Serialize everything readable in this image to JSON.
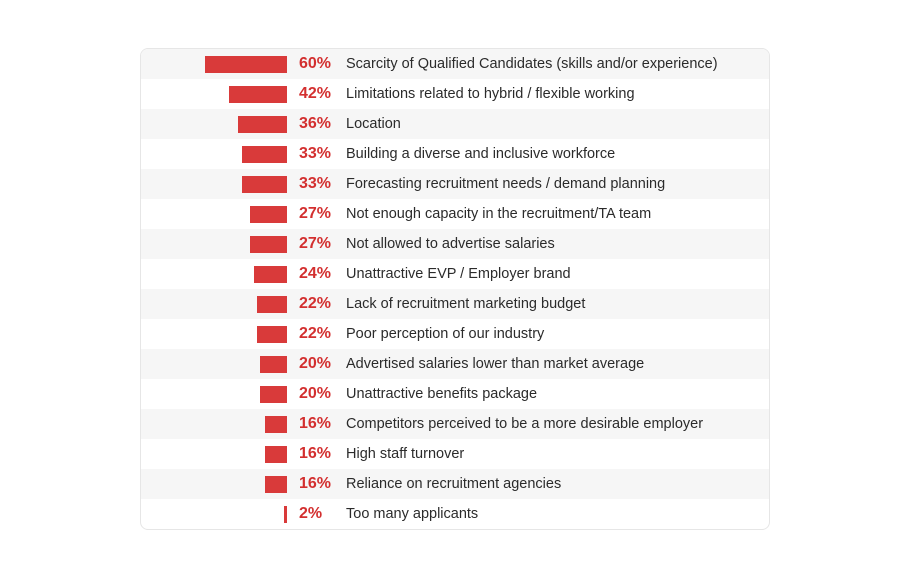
{
  "chart_data": {
    "type": "bar",
    "orientation": "horizontal",
    "unit": "%",
    "xlim": [
      0,
      100
    ],
    "colors": {
      "bar": "#d93a3a",
      "value_text": "#d32f2f",
      "row_stripe": "#f6f6f6"
    },
    "categories": [
      "Scarcity of Qualified Candidates (skills and/or experience)",
      "Limitations related to hybrid / flexible working",
      "Location",
      "Building a diverse and inclusive workforce",
      "Forecasting recruitment needs / demand planning",
      "Not enough capacity in the recruitment/TA team",
      "Not allowed to advertise salaries",
      "Unattractive EVP / Employer brand",
      "Lack of recruitment marketing budget",
      "Poor perception of our industry",
      "Advertised salaries lower than market average",
      "Unattractive benefits package",
      "Competitors perceived to be a more desirable employer",
      "High staff turnover",
      "Reliance on recruitment agencies",
      "Too many applicants"
    ],
    "values": [
      60,
      42,
      36,
      33,
      33,
      27,
      27,
      24,
      22,
      22,
      20,
      20,
      16,
      16,
      16,
      2
    ],
    "value_labels": [
      "60%",
      "42%",
      "36%",
      "33%",
      "33%",
      "27%",
      "27%",
      "24%",
      "22%",
      "22%",
      "20%",
      "20%",
      "16%",
      "16%",
      "16%",
      "2%"
    ]
  }
}
